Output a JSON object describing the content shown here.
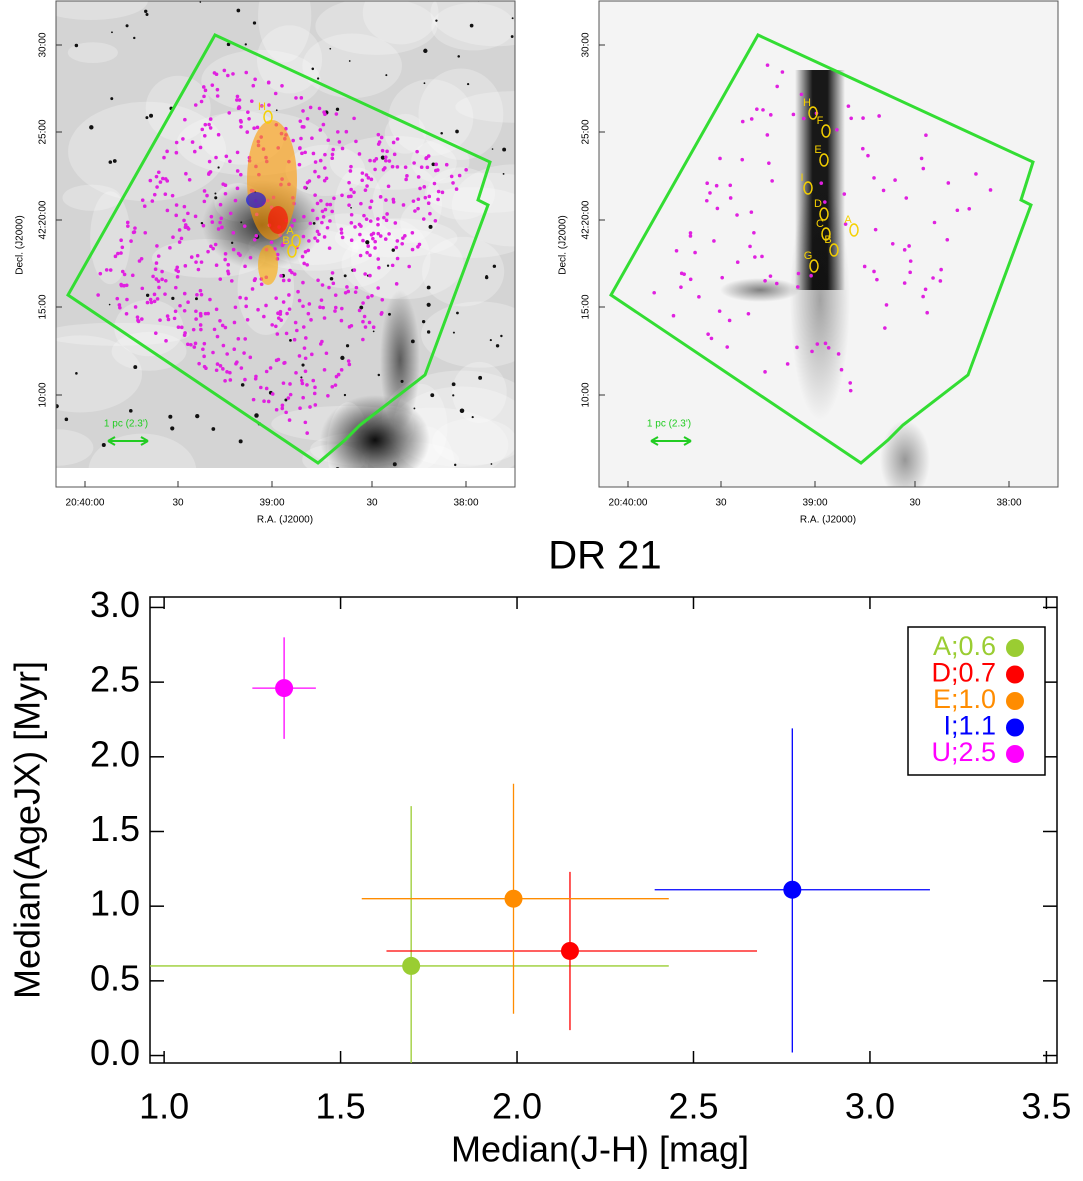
{
  "images": [
    {
      "yticks": [
        "30:00",
        "25:00",
        "42:20:00",
        "15:00",
        "10:00"
      ],
      "xticks": [
        "20:40:00",
        "30",
        "39:00",
        "30",
        "38:00"
      ],
      "ylabel": "Decl. (J2000)",
      "xlabel": "R.A. (J2000)",
      "scale": "1 pc (2.3')",
      "labels": [
        "H",
        "A",
        "B"
      ]
    },
    {
      "yticks": [
        "30:00",
        "25:00",
        "42:20:00",
        "15:00",
        "10:00"
      ],
      "xticks": [
        "20:40:00",
        "30",
        "39:00",
        "30",
        "38:00"
      ],
      "ylabel": "Decl. (J2000)",
      "xlabel": "R.A. (J2000)",
      "scale": "1 pc (2.3')",
      "labels": [
        "H",
        "F",
        "E",
        "I",
        "D",
        "C",
        "A",
        "B",
        "G"
      ]
    }
  ],
  "chart_data": {
    "type": "scatter",
    "title": "DR 21",
    "x_label": "Median(J-H) [mag]",
    "y_label": "Median(AgeJX) [Myr]",
    "xlim": [
      0.96,
      3.53
    ],
    "ylim": [
      -0.05,
      3.07
    ],
    "xticks": [
      {
        "value": 1,
        "label": "1.0"
      },
      {
        "value": 1.5,
        "label": "1.5"
      },
      {
        "value": 2,
        "label": "2.0"
      },
      {
        "value": 2.5,
        "label": "2.5"
      },
      {
        "value": 3,
        "label": "3.0"
      },
      {
        "value": 3.5,
        "label": "3.5"
      }
    ],
    "yticks": [
      {
        "value": 0,
        "label": "0.0"
      },
      {
        "value": 0.5,
        "label": "0.5"
      },
      {
        "value": 1,
        "label": "1.0"
      },
      {
        "value": 1.5,
        "label": "1.5"
      },
      {
        "value": 2,
        "label": "2.0"
      },
      {
        "value": 2.5,
        "label": "2.5"
      },
      {
        "value": 3,
        "label": "3.0"
      }
    ],
    "legend": "upper right",
    "series": [
      {
        "name": "A;0.6",
        "color": "#9acd32",
        "x": [
          1.7
        ],
        "values": [
          0.6
        ],
        "x_low": [
          0.9
        ],
        "x_high": [
          2.43
        ],
        "y_low": [
          -0.1
        ],
        "y_high": [
          1.67
        ]
      },
      {
        "name": "D;0.7",
        "color": "#ff0000",
        "x": [
          2.15
        ],
        "values": [
          0.7
        ],
        "x_low": [
          1.63
        ],
        "x_high": [
          2.68
        ],
        "y_low": [
          0.17
        ],
        "y_high": [
          1.23
        ]
      },
      {
        "name": "E;1.0",
        "color": "#ff8c00",
        "x": [
          1.99
        ],
        "values": [
          1.05
        ],
        "x_low": [
          1.56
        ],
        "x_high": [
          2.43
        ],
        "y_low": [
          0.28
        ],
        "y_high": [
          1.82
        ]
      },
      {
        "name": "I;1.1",
        "color": "#0000ff",
        "x": [
          2.78
        ],
        "values": [
          1.11
        ],
        "x_low": [
          2.39
        ],
        "x_high": [
          3.17
        ],
        "y_low": [
          0.02
        ],
        "y_high": [
          2.19
        ]
      },
      {
        "name": "U;2.5",
        "color": "#ff00ff",
        "x": [
          1.34
        ],
        "values": [
          2.46
        ],
        "x_low": [
          1.25
        ],
        "x_high": [
          1.43
        ],
        "y_low": [
          2.12
        ],
        "y_high": [
          2.8
        ]
      }
    ]
  }
}
